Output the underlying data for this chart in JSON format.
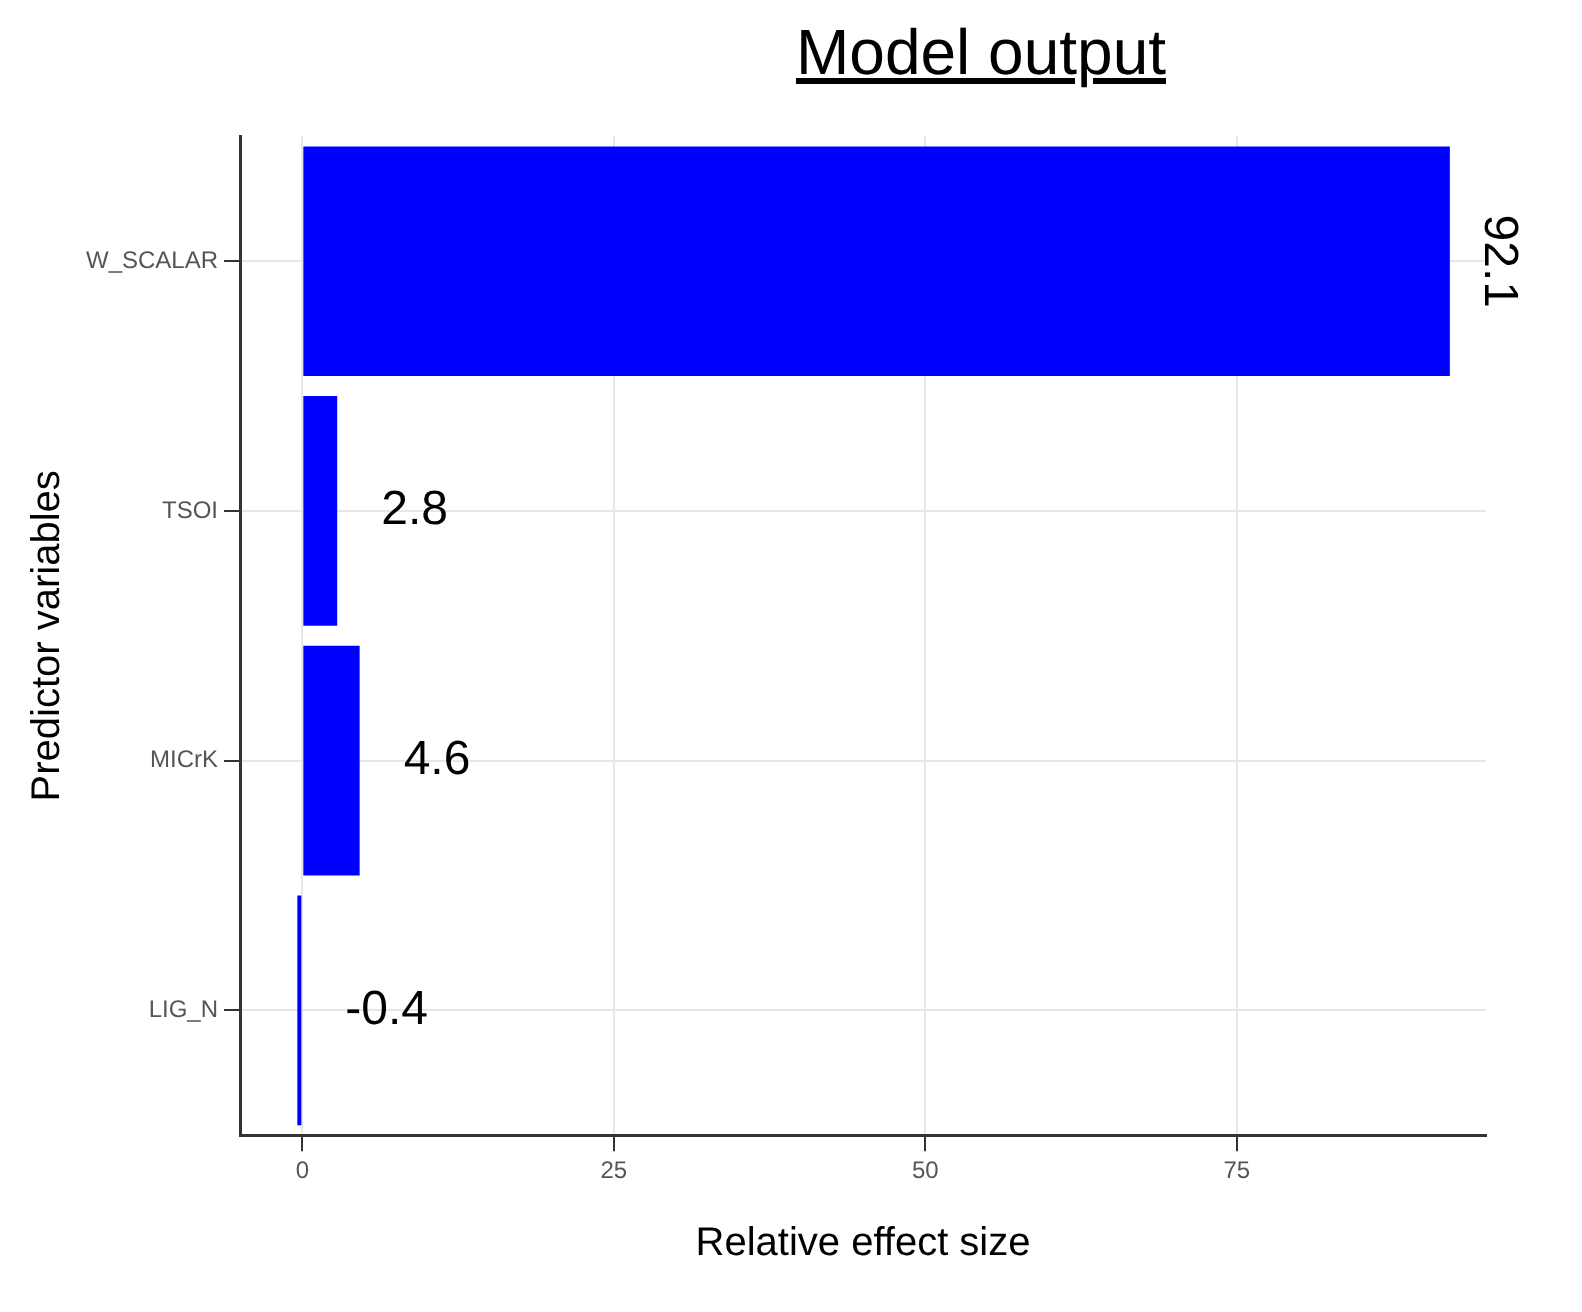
{
  "chart_data": {
    "type": "bar",
    "orientation": "horizontal",
    "title": "Model output",
    "xlabel": "Relative effect size",
    "ylabel": "Predictor variables",
    "categories": [
      "W_SCALAR",
      "TSOI",
      "MICrK",
      "LIG_N"
    ],
    "values": [
      92.1,
      2.8,
      4.6,
      -0.4
    ],
    "color": "#0000ff",
    "xlim": [
      -5,
      95
    ],
    "xticks": [
      0,
      25,
      50,
      75
    ],
    "grid": true,
    "data_labels": true
  }
}
